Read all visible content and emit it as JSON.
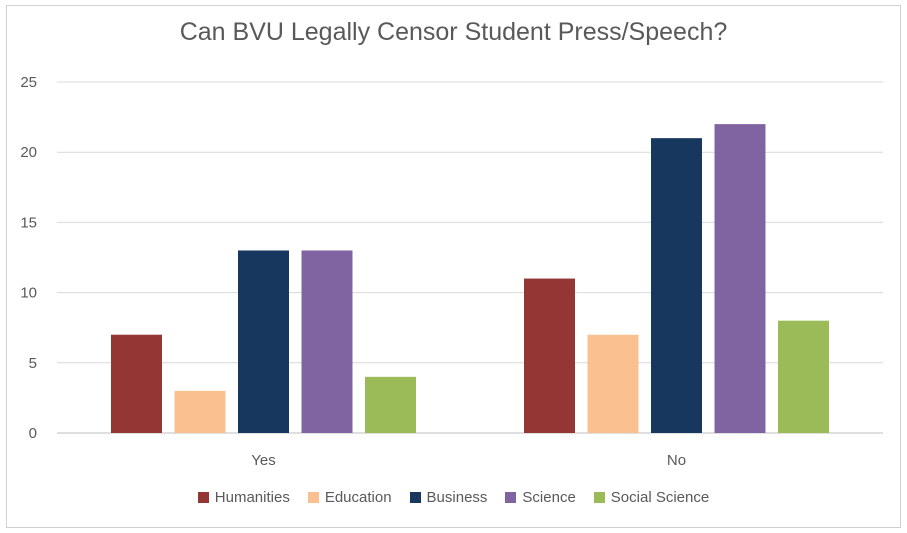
{
  "chart_data": {
    "type": "bar",
    "title": "Can BVU Legally Censor Student Press/Speech?",
    "categories": [
      "Yes",
      "No"
    ],
    "series": [
      {
        "name": "Humanities",
        "values": [
          7,
          11
        ],
        "color": "#943634"
      },
      {
        "name": "Education",
        "values": [
          3,
          7
        ],
        "color": "#fac090"
      },
      {
        "name": "Business",
        "values": [
          13,
          21
        ],
        "color": "#17375e"
      },
      {
        "name": "Science",
        "values": [
          13,
          22
        ],
        "color": "#8064a2"
      },
      {
        "name": "Social Science",
        "values": [
          4,
          8
        ],
        "color": "#9bbb59"
      }
    ],
    "ylim": [
      0,
      25
    ],
    "yticks": [
      "0",
      "5",
      "10",
      "15",
      "20",
      "25"
    ],
    "grid": true,
    "legend_position": "bottom"
  }
}
